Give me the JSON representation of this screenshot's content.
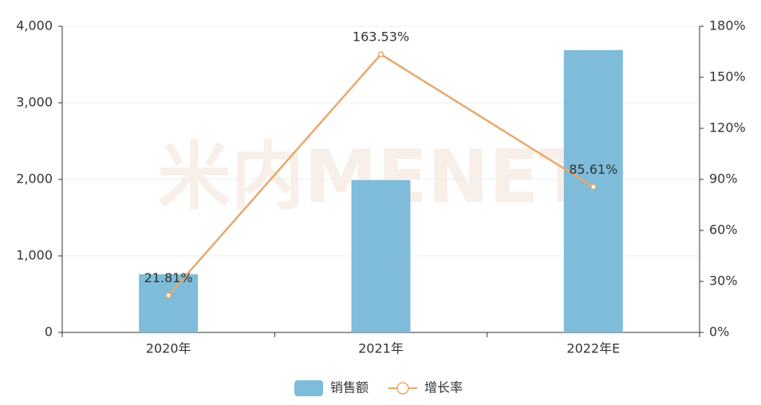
{
  "chart_data": {
    "type": "bar-line",
    "watermark": "米内MENET",
    "categories": [
      "2020年",
      "2021年",
      "2022年E"
    ],
    "series": [
      {
        "name": "销售额",
        "type": "bar",
        "color": "#7ebcd9",
        "values": [
          760,
          1990,
          3690
        ]
      },
      {
        "name": "增长率",
        "type": "line",
        "axis": "y2",
        "color": "#e8a86e",
        "values": [
          21.81,
          163.53,
          85.61
        ],
        "value_labels": [
          "21.81%",
          "163.53%",
          "85.61%"
        ]
      }
    ],
    "ylim": [
      0,
      4000
    ],
    "yticks": [
      0,
      {
        "value": 1000,
        "label": "1,000"
      },
      {
        "value": 2000,
        "label": "2,000"
      },
      {
        "value": 3000,
        "label": "3,000"
      },
      {
        "value": 4000,
        "label": "4,000"
      }
    ],
    "y2lim": [
      0,
      180
    ],
    "y2ticks": [
      {
        "value": 0,
        "label": "0%"
      },
      {
        "value": 30,
        "label": "30%"
      },
      {
        "value": 60,
        "label": "60%"
      },
      {
        "value": 90,
        "label": "90%"
      },
      {
        "value": 120,
        "label": "120%"
      },
      {
        "value": 150,
        "label": "150%"
      },
      {
        "value": 180,
        "label": "180%"
      }
    ],
    "grid": true,
    "legend": "bottom"
  }
}
